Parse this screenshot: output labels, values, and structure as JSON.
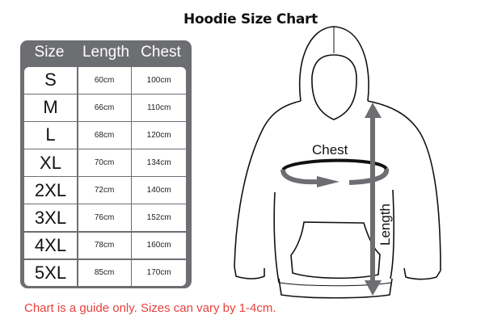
{
  "title": "Hoodie Size Chart",
  "table": {
    "headers": [
      "Size",
      "Length",
      "Chest"
    ],
    "rows": [
      [
        "S",
        "60cm",
        "100cm"
      ],
      [
        "M",
        "66cm",
        "110cm"
      ],
      [
        "L",
        "68cm",
        "120cm"
      ],
      [
        "XL",
        "70cm",
        "134cm"
      ],
      [
        "2XL",
        "72cm",
        "140cm"
      ],
      [
        "3XL",
        "76cm",
        "152cm"
      ],
      [
        "4XL",
        "78cm",
        "160cm"
      ],
      [
        "5XL",
        "85cm",
        "170cm"
      ]
    ]
  },
  "diagram": {
    "chest_label": "Chest",
    "length_label": "Length",
    "arrow_color": "#6d6e71"
  },
  "note": "Chart is a guide only. Sizes can vary by 1-4cm.",
  "colors": {
    "table_frame": "#6d6e71",
    "note": "#e8413c"
  }
}
